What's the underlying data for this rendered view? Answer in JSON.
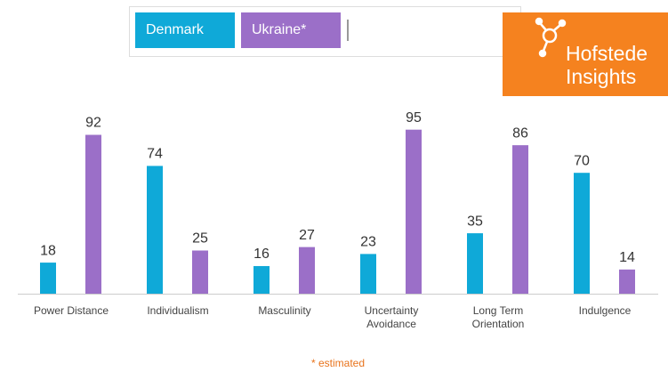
{
  "chart_data": {
    "type": "bar",
    "categories": [
      "Power Distance",
      "Individualism",
      "Masculinity",
      "Uncertainty Avoidance",
      "Long Term Orientation",
      "Indulgence"
    ],
    "series": [
      {
        "name": "Denmark",
        "color": "#0fa9d8",
        "values": [
          18,
          74,
          16,
          23,
          35,
          70
        ]
      },
      {
        "name": "Ukraine*",
        "color": "#9b6fc8",
        "values": [
          92,
          25,
          27,
          95,
          86,
          14
        ]
      }
    ],
    "footnote": "* estimated"
  },
  "logo": {
    "lines": [
      "Hofstede",
      "Insights"
    ],
    "color": "#f5821f"
  }
}
